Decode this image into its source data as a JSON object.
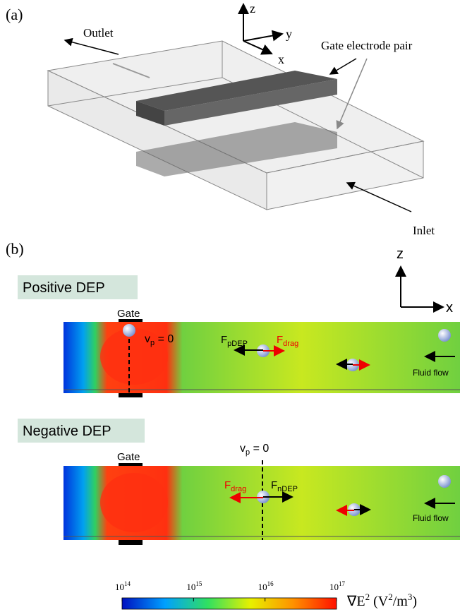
{
  "panel_a": {
    "label": "(a)",
    "axis_z": "z",
    "axis_y": "y",
    "axis_x": "x",
    "outlet": "Outlet",
    "gate_pair": "Gate electrode pair",
    "inlet": "Inlet"
  },
  "panel_b": {
    "label": "(b)",
    "axis_z": "z",
    "axis_x": "x",
    "positive": {
      "title": "Positive DEP",
      "gate": "Gate",
      "vp": {
        "base": "v",
        "sub": "p",
        "rest": " = 0"
      },
      "f_dep": {
        "base": "F",
        "sub": "pDEP"
      },
      "f_drag": {
        "base": "F",
        "sub": "drag"
      },
      "flow": "Fluid flow"
    },
    "negative": {
      "title": "Negative DEP",
      "gate": "Gate",
      "vp": {
        "base": "v",
        "sub": "p",
        "rest": " = 0"
      },
      "f_dep": {
        "base": "F",
        "sub": "nDEP"
      },
      "f_drag": {
        "base": "F",
        "sub": "drag"
      },
      "flow": "Fluid flow"
    }
  },
  "colorbar": {
    "scale": "log",
    "lim": [
      100000000000000.0,
      1e+17
    ],
    "ticks": [
      {
        "value": 100000000000000.0,
        "base": "10",
        "exponent": "14"
      },
      {
        "value": 1000000000000000.0,
        "base": "10",
        "exponent": "15"
      },
      {
        "value": 1e+16,
        "base": "10",
        "exponent": "16"
      },
      {
        "value": 1e+17,
        "base": "10",
        "exponent": "17"
      }
    ],
    "label": {
      "p0": "∇E",
      "s0": "2",
      "p1": " (V",
      "s1": "2",
      "p2": "/m",
      "s2": "3",
      "p3": ")"
    }
  }
}
